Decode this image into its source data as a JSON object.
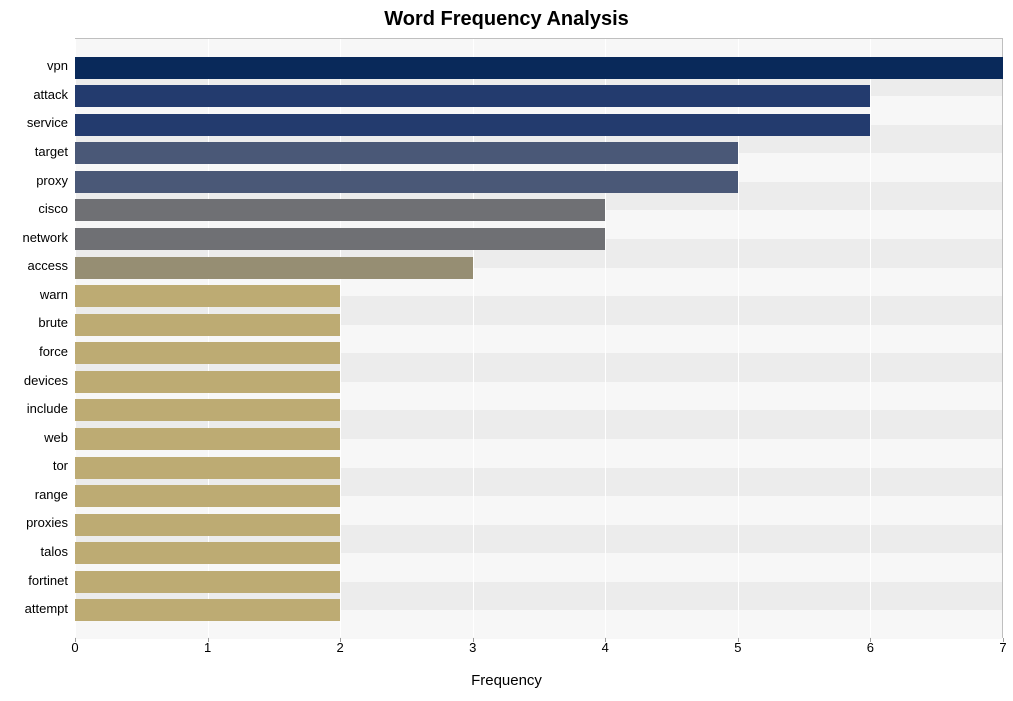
{
  "chart": {
    "type": "bar-horizontal",
    "title": "Word Frequency Analysis",
    "title_fontsize": 20,
    "title_fontweight": "bold",
    "x_axis_label": "Frequency",
    "x_axis_label_fontsize": 15,
    "y_label_fontsize": 13,
    "x_tick_fontsize": 13,
    "plot_background_colors": [
      "#ececec",
      "#f7f7f7"
    ],
    "grid_color": "#ffffff",
    "bar_height_ratio": 0.77,
    "xlim": [
      0,
      7
    ],
    "xticks": [
      0,
      1,
      2,
      3,
      4,
      5,
      6,
      7
    ],
    "bars": [
      {
        "label": "vpn",
        "value": 7,
        "color": "#09295a"
      },
      {
        "label": "attack",
        "value": 6,
        "color": "#233b6e"
      },
      {
        "label": "service",
        "value": 6,
        "color": "#233b6e"
      },
      {
        "label": "target",
        "value": 5,
        "color": "#4a5877"
      },
      {
        "label": "proxy",
        "value": 5,
        "color": "#4a5877"
      },
      {
        "label": "cisco",
        "value": 4,
        "color": "#6f7074"
      },
      {
        "label": "network",
        "value": 4,
        "color": "#6f7074"
      },
      {
        "label": "access",
        "value": 3,
        "color": "#968e73"
      },
      {
        "label": "warn",
        "value": 2,
        "color": "#bdab73"
      },
      {
        "label": "brute",
        "value": 2,
        "color": "#bdab73"
      },
      {
        "label": "force",
        "value": 2,
        "color": "#bdab73"
      },
      {
        "label": "devices",
        "value": 2,
        "color": "#bdab73"
      },
      {
        "label": "include",
        "value": 2,
        "color": "#bdab73"
      },
      {
        "label": "web",
        "value": 2,
        "color": "#bdab73"
      },
      {
        "label": "tor",
        "value": 2,
        "color": "#bdab73"
      },
      {
        "label": "range",
        "value": 2,
        "color": "#bdab73"
      },
      {
        "label": "proxies",
        "value": 2,
        "color": "#bdab73"
      },
      {
        "label": "talos",
        "value": 2,
        "color": "#bdab73"
      },
      {
        "label": "fortinet",
        "value": 2,
        "color": "#bdab73"
      },
      {
        "label": "attempt",
        "value": 2,
        "color": "#bdab73"
      }
    ]
  }
}
